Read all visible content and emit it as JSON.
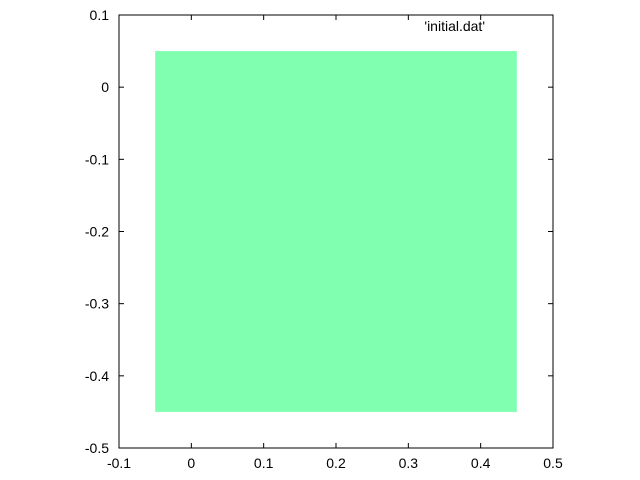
{
  "chart_data": {
    "type": "heatmap",
    "title": "",
    "xlabel": "",
    "ylabel": "",
    "xlim": [
      -0.1,
      0.5
    ],
    "ylim": [
      -0.5,
      0.1
    ],
    "x_ticks": [
      "-0.1",
      "0",
      "0.1",
      "0.2",
      "0.3",
      "0.4",
      "0.5"
    ],
    "y_ticks": [
      "0.1",
      "0",
      "-0.1",
      "-0.2",
      "-0.3",
      "-0.4",
      "-0.5"
    ],
    "x_tick_values": [
      -0.1,
      0,
      0.1,
      0.2,
      0.3,
      0.4,
      0.5
    ],
    "y_tick_values": [
      0.1,
      0,
      -0.1,
      -0.2,
      -0.3,
      -0.4,
      -0.5
    ],
    "grid": false,
    "legend": {
      "label": "'initial.dat'",
      "placement": "top-right"
    },
    "series": [
      {
        "name": "'initial.dat'",
        "shape": "filled-rectangle",
        "x_range": [
          -0.05,
          0.45
        ],
        "y_range": [
          -0.45,
          0.05
        ],
        "color": "#80ffb0"
      }
    ]
  }
}
